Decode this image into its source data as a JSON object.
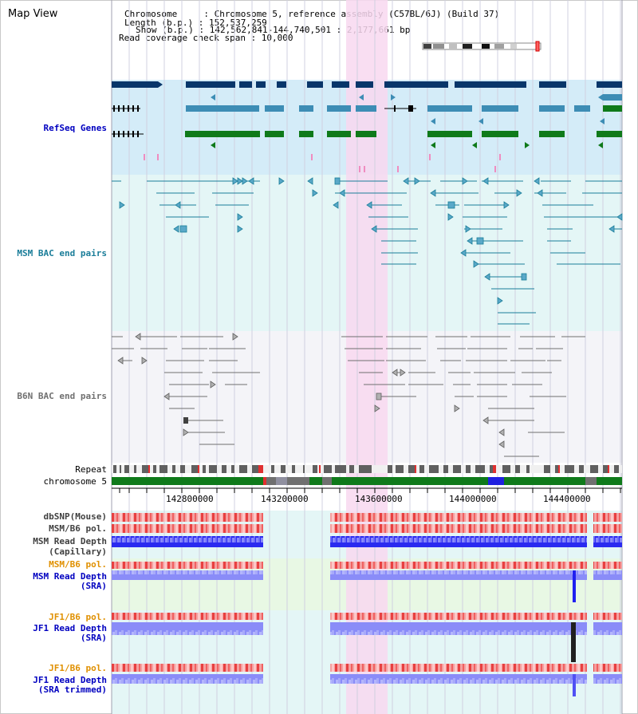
{
  "header": {
    "title": "Map View",
    "chromosome_line": "Chromosome     : Chromosome 5, reference assembly (C57BL/6J) (Build 37)",
    "length_line": "Length (b.p.) : 152,537,259",
    "show_line": "Show (b.p.) : 142,562,841-144,740,501 : 2,177,661 bp",
    "coverage_line": "Read coverage check span : 10,000"
  },
  "tracks": {
    "refseq": "RefSeq Genes",
    "msm_bac": "MSM BAC end pairs",
    "b6n_bac": "B6N BAC end pairs",
    "repeat": "Repeat",
    "chromosome": "chromosome 5",
    "dbsnp": "dbSNP(Mouse)",
    "msm_b6_pol": "MSM/B6 pol.",
    "msm_depth_cap": "MSM Read Depth",
    "msm_depth_cap_sub": "(Capillary)",
    "msm_b6_pol_sra": "MSM/B6 pol.",
    "msm_depth_sra": "MSM Read Depth",
    "msm_depth_sra_sub": "(SRA)",
    "jf1_b6_pol": "JF1/B6 pol.",
    "jf1_depth_sra": "JF1 Read Depth",
    "jf1_depth_sra_sub": "(SRA)",
    "jf1_b6_pol_trim": "JF1/B6 pol.",
    "jf1_depth_trim": "JF1 Read Depth",
    "jf1_depth_trim_sub": "(SRA trimmed)"
  },
  "axis": {
    "ticks": [
      "142800000",
      "143200000",
      "143600000",
      "144000000",
      "144400000"
    ]
  },
  "colors": {
    "refseq_bg": "#d4ecf8",
    "msm_bg": "#e4f6f6",
    "b6n_bg": "#f4f4f8",
    "highlight": "#f8d8f0",
    "gene_dark": "#08366a",
    "gene_mid": "#3d8db5",
    "gene_green": "#0f7a1a",
    "msm_pair": "#1a7d99",
    "b6n_pair": "#707070",
    "snp_red": "#e03030",
    "depth_blue": "#2020f0",
    "depth_light": "#8a8cf8",
    "label_blue": "#0000c0",
    "label_orange": "#e09000",
    "label_teal": "#1a7d99"
  }
}
